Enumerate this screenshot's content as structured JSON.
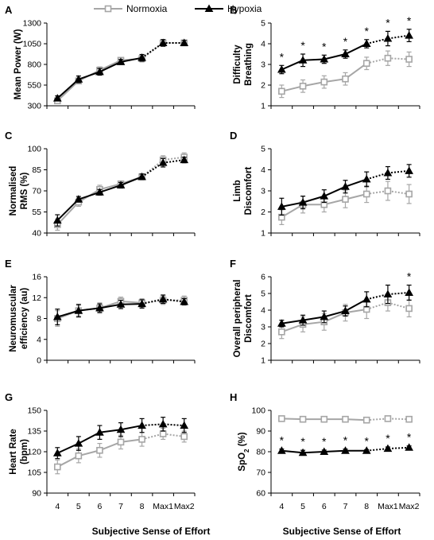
{
  "legend": [
    {
      "name": "Normoxia",
      "color": "#a6a6a6",
      "marker": "open-square"
    },
    {
      "name": "Hypoxia",
      "color": "#000000",
      "marker": "filled-triangle"
    }
  ],
  "x_axis_title": "Subjective Sense of Effort",
  "chart_data": [
    {
      "panel": "A",
      "type": "line",
      "ylabel_lines": [
        "Mean Power (W)"
      ],
      "categories": [
        "4",
        "5",
        "6",
        "7",
        "8",
        "Max1",
        "Max2"
      ],
      "yticks": [
        300,
        550,
        800,
        1050,
        1300
      ],
      "ylim": [
        300,
        1300
      ],
      "solid_until": 4,
      "show_xticks": false,
      "series": [
        {
          "name": "Normoxia",
          "values": [
            360,
            600,
            730,
            850,
            870,
            1060,
            1060
          ],
          "err": [
            30,
            30,
            40,
            30,
            40,
            40,
            30
          ]
        },
        {
          "name": "Hypoxia",
          "values": [
            390,
            620,
            710,
            830,
            880,
            1060,
            1060
          ],
          "err": [
            30,
            40,
            40,
            30,
            40,
            40,
            30
          ]
        }
      ],
      "stars": []
    },
    {
      "panel": "B",
      "type": "line",
      "ylabel_lines": [
        "Difficulty",
        "Breathing"
      ],
      "categories": [
        "4",
        "5",
        "6",
        "7",
        "8",
        "Max1",
        "Max2"
      ],
      "yticks": [
        1,
        2,
        3,
        4,
        5
      ],
      "ylim": [
        1,
        5
      ],
      "solid_until": 4,
      "show_xticks": false,
      "series": [
        {
          "name": "Normoxia",
          "values": [
            1.7,
            1.95,
            2.15,
            2.3,
            3.05,
            3.3,
            3.25
          ],
          "err": [
            0.3,
            0.3,
            0.3,
            0.3,
            0.3,
            0.35,
            0.35
          ]
        },
        {
          "name": "Hypoxia",
          "values": [
            2.75,
            3.2,
            3.25,
            3.5,
            4.0,
            4.25,
            4.4
          ],
          "err": [
            0.2,
            0.3,
            0.2,
            0.2,
            0.2,
            0.35,
            0.3
          ]
        }
      ],
      "stars": [
        0,
        1,
        2,
        3,
        4,
        5,
        6
      ]
    },
    {
      "panel": "C",
      "type": "line",
      "ylabel_lines": [
        "Normalised",
        "RMS (%)"
      ],
      "categories": [
        "4",
        "5",
        "6",
        "7",
        "8",
        "Max1",
        "Max2"
      ],
      "yticks": [
        40,
        55,
        70,
        85,
        100
      ],
      "ylim": [
        40,
        100
      ],
      "solid_until": 4,
      "show_xticks": false,
      "series": [
        {
          "name": "Normoxia",
          "values": [
            46,
            62,
            71,
            75,
            80,
            92,
            94
          ],
          "err": [
            4,
            3,
            3,
            2,
            2,
            3,
            3
          ]
        },
        {
          "name": "Hypoxia",
          "values": [
            49,
            64,
            69,
            74,
            80,
            90,
            92
          ],
          "err": [
            4,
            2,
            2,
            2,
            2,
            3,
            2
          ]
        }
      ],
      "stars": []
    },
    {
      "panel": "D",
      "type": "line",
      "ylabel_lines": [
        "Limb",
        "Discomfort"
      ],
      "categories": [
        "4",
        "5",
        "6",
        "7",
        "8",
        "Max1",
        "Max2"
      ],
      "yticks": [
        1,
        2,
        3,
        4,
        5
      ],
      "ylim": [
        1,
        5
      ],
      "solid_until": 4,
      "show_xticks": false,
      "series": [
        {
          "name": "Normoxia",
          "values": [
            1.75,
            2.35,
            2.35,
            2.6,
            2.85,
            3.0,
            2.85
          ],
          "err": [
            0.35,
            0.4,
            0.35,
            0.4,
            0.4,
            0.45,
            0.45
          ]
        },
        {
          "name": "Hypoxia",
          "values": [
            2.25,
            2.45,
            2.75,
            3.2,
            3.55,
            3.85,
            3.95
          ],
          "err": [
            0.4,
            0.3,
            0.3,
            0.3,
            0.35,
            0.3,
            0.3
          ]
        }
      ],
      "stars": []
    },
    {
      "panel": "E",
      "type": "line",
      "ylabel_lines": [
        "Neuromuscular",
        "efficiency (au)"
      ],
      "categories": [
        "4",
        "5",
        "6",
        "7",
        "8",
        "Max1",
        "Max2"
      ],
      "yticks": [
        0,
        4,
        8,
        12,
        16
      ],
      "ylim": [
        0,
        16
      ],
      "solid_until": 4,
      "show_xticks": false,
      "series": [
        {
          "name": "Normoxia",
          "values": [
            8.0,
            9.5,
            10.0,
            11.3,
            11.0,
            11.5,
            11.5
          ],
          "err": [
            1.5,
            1.0,
            1.0,
            0.8,
            0.8,
            0.8,
            0.8
          ]
        },
        {
          "name": "Hypoxia",
          "values": [
            8.3,
            9.5,
            10.0,
            10.7,
            10.8,
            11.7,
            11.2
          ],
          "err": [
            1.5,
            1.2,
            0.8,
            0.8,
            0.8,
            0.8,
            0.6
          ]
        }
      ],
      "stars": []
    },
    {
      "panel": "F",
      "type": "line",
      "ylabel_lines": [
        "Overall peripheral",
        "Discomfort"
      ],
      "categories": [
        "4",
        "5",
        "6",
        "7",
        "8",
        "Max1",
        "Max2"
      ],
      "yticks": [
        1,
        2,
        3,
        4,
        5,
        6
      ],
      "ylim": [
        1,
        6
      ],
      "solid_until": 4,
      "show_xticks": false,
      "series": [
        {
          "name": "Normoxia",
          "values": [
            2.7,
            3.15,
            3.3,
            3.85,
            4.05,
            4.45,
            4.1
          ],
          "err": [
            0.4,
            0.45,
            0.5,
            0.5,
            0.55,
            0.5,
            0.5
          ]
        },
        {
          "name": "Hypoxia",
          "values": [
            3.2,
            3.4,
            3.6,
            3.95,
            4.65,
            4.95,
            5.05
          ],
          "err": [
            0.2,
            0.3,
            0.35,
            0.3,
            0.45,
            0.55,
            0.45
          ]
        }
      ],
      "stars": [
        6
      ]
    },
    {
      "panel": "G",
      "type": "line",
      "ylabel_lines": [
        "Heart Rate",
        "(bpm)"
      ],
      "categories": [
        "4",
        "5",
        "6",
        "7",
        "8",
        "Max1",
        "Max2"
      ],
      "yticks": [
        90,
        105,
        120,
        135,
        150
      ],
      "ylim": [
        90,
        150
      ],
      "solid_until": 4,
      "show_xticks": true,
      "series": [
        {
          "name": "Normoxia",
          "values": [
            109,
            117,
            121,
            127,
            129,
            133,
            131
          ],
          "err": [
            5,
            5,
            5,
            5,
            5,
            4,
            4
          ]
        },
        {
          "name": "Hypoxia",
          "values": [
            119,
            126,
            134,
            136,
            139,
            140,
            139
          ],
          "err": [
            4,
            5,
            5,
            5,
            5,
            5,
            5
          ]
        }
      ],
      "stars": []
    },
    {
      "panel": "H",
      "type": "line",
      "ylabel_lines": [
        "SpO<sub>2</sub> (%)"
      ],
      "ylabel_text": "SpO2 (%)",
      "categories": [
        "4",
        "5",
        "6",
        "7",
        "8",
        "Max1",
        "Max2"
      ],
      "yticks": [
        60,
        70,
        80,
        90,
        100
      ],
      "ylim": [
        60,
        100
      ],
      "solid_until": 4,
      "show_xticks": true,
      "series": [
        {
          "name": "Normoxia",
          "values": [
            96,
            95.7,
            95.7,
            95.7,
            95.3,
            96,
            95.7
          ],
          "err": [
            0.5,
            0.5,
            0.5,
            0.5,
            0.5,
            0.5,
            0.5
          ]
        },
        {
          "name": "Hypoxia",
          "values": [
            80.5,
            79.5,
            80,
            80.5,
            80.5,
            81.5,
            82
          ],
          "err": [
            0.8,
            1.2,
            0.8,
            0.8,
            0.5,
            0.8,
            0.8
          ]
        }
      ],
      "stars": [
        0,
        1,
        2,
        3,
        4,
        5,
        6
      ]
    }
  ]
}
